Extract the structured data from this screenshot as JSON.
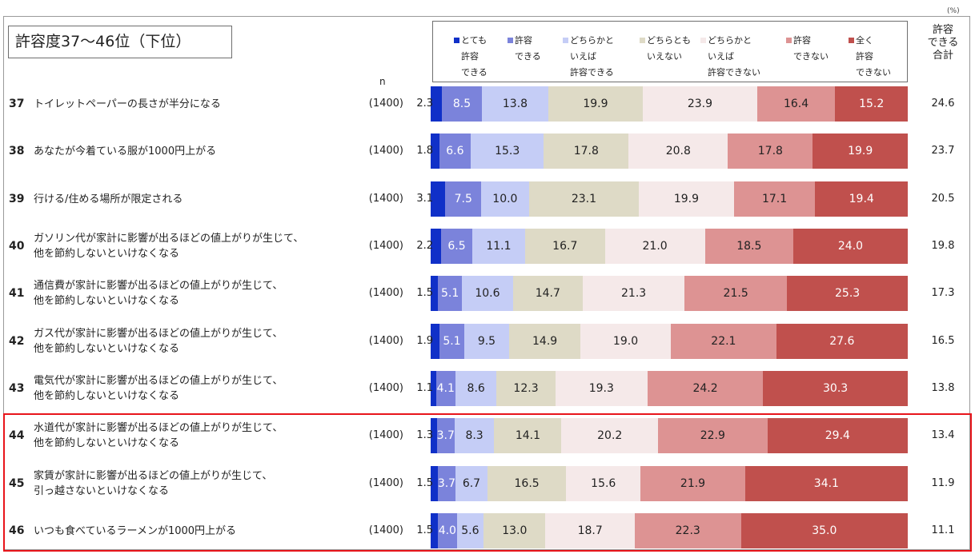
{
  "title": "許容度37～46位（下位）",
  "unit_label": "(%)",
  "n_header": "n",
  "total_header": "許容\nできる\n合計",
  "colors": [
    "#1030c8",
    "#7b83db",
    "#c5cdf6",
    "#dedac6",
    "#f5e9e9",
    "#dd9393",
    "#c0504d"
  ],
  "highlight_color": "#e8151b",
  "legend": [
    "とても\n許容\nできる",
    "許容\nできる",
    "どちらかと\nいえば\n許容できる",
    "どちらとも\nいえない",
    "どちらかと\nいえば\n許容できない",
    "許容\nできない",
    "全く\n許容\nできない"
  ],
  "rows": [
    {
      "rank": "37",
      "label": "トイレットペーパーの長さが半分になる",
      "n": "(1400)",
      "total": "24.6",
      "highlighted": false
    },
    {
      "rank": "38",
      "label": "あなたが今着ている服が1000円上がる",
      "n": "(1400)",
      "total": "23.7",
      "highlighted": false
    },
    {
      "rank": "39",
      "label": "行ける/住める場所が限定される",
      "n": "(1400)",
      "total": "20.5",
      "highlighted": false
    },
    {
      "rank": "40",
      "label": "ガソリン代が家計に影響が出るほどの値上がりが生じて、\n他を節約しないといけなくなる",
      "n": "(1400)",
      "total": "19.8",
      "highlighted": false
    },
    {
      "rank": "41",
      "label": "通信費が家計に影響が出るほどの値上がりが生じて、\n他を節約しないといけなくなる",
      "n": "(1400)",
      "total": "17.3",
      "highlighted": false
    },
    {
      "rank": "42",
      "label": "ガス代が家計に影響が出るほどの値上がりが生じて、\n他を節約しないといけなくなる",
      "n": "(1400)",
      "total": "16.5",
      "highlighted": false
    },
    {
      "rank": "43",
      "label": "電気代が家計に影響が出るほどの値上がりが生じて、\n他を節約しないといけなくなる",
      "n": "(1400)",
      "total": "13.8",
      "highlighted": false
    },
    {
      "rank": "44",
      "label": "水道代が家計に影響が出るほどの値上がりが生じて、\n他を節約しないといけなくなる",
      "n": "(1400)",
      "total": "13.4",
      "highlighted": true
    },
    {
      "rank": "45",
      "label": "家賃が家計に影響が出るほどの値上がりが生じて、\n引っ越さないといけなくなる",
      "n": "(1400)",
      "total": "11.9",
      "highlighted": true
    },
    {
      "rank": "46",
      "label": "いつも食べているラーメンが1000円上がる",
      "n": "(1400)",
      "total": "11.1",
      "highlighted": true
    }
  ],
  "chart_data": {
    "type": "bar",
    "orientation": "horizontal",
    "stacked": true,
    "xlim": [
      0,
      100
    ],
    "categories": [
      "37",
      "38",
      "39",
      "40",
      "41",
      "42",
      "43",
      "44",
      "45",
      "46"
    ],
    "series": [
      {
        "name": "とても許容できる",
        "values": [
          2.3,
          1.8,
          3.1,
          2.2,
          1.5,
          1.9,
          1.1,
          1.3,
          1.5,
          1.5
        ]
      },
      {
        "name": "許容できる",
        "values": [
          8.5,
          6.6,
          7.5,
          6.5,
          5.1,
          5.1,
          4.1,
          3.7,
          3.7,
          4.0
        ]
      },
      {
        "name": "どちらかといえば許容できる",
        "values": [
          13.8,
          15.3,
          10.0,
          11.1,
          10.6,
          9.5,
          8.6,
          8.3,
          6.7,
          5.6
        ]
      },
      {
        "name": "どちらともいえない",
        "values": [
          19.9,
          17.8,
          23.1,
          16.7,
          14.7,
          14.9,
          12.3,
          14.1,
          16.5,
          13.0
        ]
      },
      {
        "name": "どちらかといえば許容できない",
        "values": [
          23.9,
          20.8,
          19.9,
          21.0,
          21.3,
          19.0,
          19.3,
          20.2,
          15.6,
          18.7
        ]
      },
      {
        "name": "許容できない",
        "values": [
          16.4,
          17.8,
          17.1,
          18.5,
          21.5,
          22.1,
          24.2,
          22.9,
          21.9,
          22.3
        ]
      },
      {
        "name": "全く許容できない",
        "values": [
          15.2,
          19.9,
          19.4,
          24.0,
          25.3,
          27.6,
          30.3,
          29.4,
          34.1,
          35.0
        ]
      }
    ],
    "legend_position": "top",
    "grid": false
  }
}
